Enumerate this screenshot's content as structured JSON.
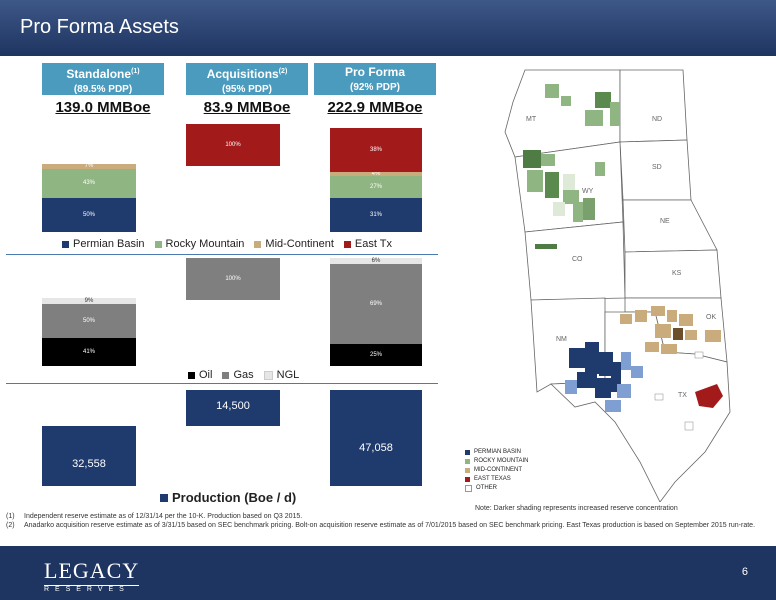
{
  "page": {
    "title": "Pro Forma Assets",
    "page_number": "6"
  },
  "columns": [
    {
      "title": "Standalone",
      "sup": "(1)",
      "sub": "(89.5% PDP)",
      "total": "139.0 MMBoe"
    },
    {
      "title": "Acquisitions",
      "sup": "(2)",
      "sub": "(95% PDP)",
      "total": "83.9 MMBoe"
    },
    {
      "title": "Pro Forma",
      "sup": "",
      "sub": "(92% PDP)",
      "total": "222.9 MMBoe"
    }
  ],
  "colors": {
    "permian": "#1f3a6d",
    "rocky": "#8fb583",
    "midcon": "#c9ab7c",
    "easttx": "#a31a1a",
    "oil": "#000000",
    "gas": "#7f7f7f",
    "ngl": "#e6e6e6",
    "production": "#1f3a6d"
  },
  "chart_data": [
    {
      "type": "bar",
      "stacked": true,
      "categories": [
        "Standalone",
        "Acquisitions",
        "Pro Forma"
      ],
      "series": [
        {
          "name": "Permian Basin",
          "values": [
            50,
            0,
            31
          ],
          "labels": [
            "50%",
            "",
            "31%"
          ]
        },
        {
          "name": "Rocky Mountain",
          "values": [
            43,
            0,
            27
          ],
          "labels": [
            "43%",
            "",
            "27%"
          ]
        },
        {
          "name": "Mid-Continent",
          "values": [
            7,
            0,
            4
          ],
          "labels": [
            "7%",
            "",
            "4%"
          ]
        },
        {
          "name": "East Tx",
          "values": [
            0,
            100,
            38
          ],
          "labels": [
            "",
            "100%",
            "38%"
          ]
        }
      ]
    },
    {
      "type": "bar",
      "stacked": true,
      "categories": [
        "Standalone",
        "Acquisitions",
        "Pro Forma"
      ],
      "series": [
        {
          "name": "Oil",
          "values": [
            41,
            0,
            25
          ],
          "labels": [
            "41%",
            "",
            "25%"
          ]
        },
        {
          "name": "Gas",
          "values": [
            50,
            100,
            69
          ],
          "labels": [
            "50%",
            "100%",
            "69%"
          ]
        },
        {
          "name": "NGL",
          "values": [
            9,
            0,
            6
          ],
          "labels": [
            "9%",
            "",
            "6%"
          ]
        }
      ]
    },
    {
      "type": "bar",
      "categories": [
        "Standalone",
        "Acquisitions",
        "Pro Forma"
      ],
      "series": [
        {
          "name": "Production (Boe / d)",
          "values": [
            32558,
            14500,
            47058
          ],
          "labels": [
            "32,558",
            "14,500",
            "47,058"
          ]
        }
      ]
    }
  ],
  "legends": {
    "region": [
      "Permian Basin",
      "Rocky Mountain",
      "Mid-Continent",
      "East Tx"
    ],
    "product": [
      "Oil",
      "Gas",
      "NGL"
    ],
    "production": "Production (Boe / d)"
  },
  "map": {
    "states": [
      "MT",
      "ND",
      "SD",
      "WY",
      "NE",
      "CO",
      "KS",
      "OK",
      "NM",
      "TX"
    ],
    "legend": [
      "PERMIAN BASIN",
      "ROCKY MOUNTAIN",
      "MID-CONTINENT",
      "EAST TEXAS",
      "OTHER"
    ],
    "note": "Note: Darker shading represents increased reserve concentration"
  },
  "footnotes": [
    {
      "num": "(1)",
      "text": "Independent reserve estimate as of 12/31/14 per the 10-K. Production based on Q3 2015."
    },
    {
      "num": "(2)",
      "text": "Anadarko acquisition reserve estimate as of 3/31/15 based on SEC benchmark pricing.  Bolt-on acquisition reserve estimate as of 7/01/2015 based on SEC benchmark pricing. East Texas production is based on September 2015 run-rate."
    }
  ],
  "logo": {
    "name": "LEGACY",
    "sub": "R E S E R V E S"
  }
}
